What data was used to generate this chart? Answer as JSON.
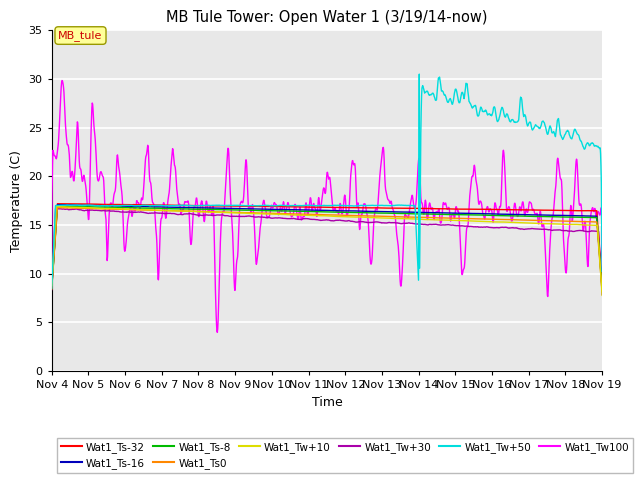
{
  "title": "MB Tule Tower: Open Water 1 (3/19/14-now)",
  "xlabel": "Time",
  "ylabel": "Temperature (C)",
  "xlim": [
    0,
    15
  ],
  "ylim": [
    0,
    35
  ],
  "yticks": [
    0,
    5,
    10,
    15,
    20,
    25,
    30,
    35
  ],
  "xtick_labels": [
    "Nov 4",
    "Nov 5",
    "Nov 6",
    "Nov 7",
    "Nov 8",
    "Nov 9",
    "Nov 10",
    "Nov 11",
    "Nov 12",
    "Nov 13",
    "Nov 14",
    "Nov 15",
    "Nov 16",
    "Nov 17",
    "Nov 18",
    "Nov 19"
  ],
  "bg_color": "#e8e8e8",
  "colors": {
    "Ts32": "#ff0000",
    "Ts16": "#0000bb",
    "Ts8": "#00bb00",
    "Ts0": "#ff8800",
    "Tw10": "#dddd00",
    "Tw30": "#aa00aa",
    "Tw50": "#00dddd",
    "Tw100": "#ff00ff"
  },
  "annotation_label": "MB_tule",
  "annotation_color": "#cc0000",
  "annotation_bg": "#ffff99",
  "legend": [
    "Wat1_Ts-32",
    "Wat1_Ts-16",
    "Wat1_Ts-8",
    "Wat1_Ts0",
    "Wat1_Tw+10",
    "Wat1_Tw+30",
    "Wat1_Tw+50",
    "Wat1_Tw100"
  ]
}
